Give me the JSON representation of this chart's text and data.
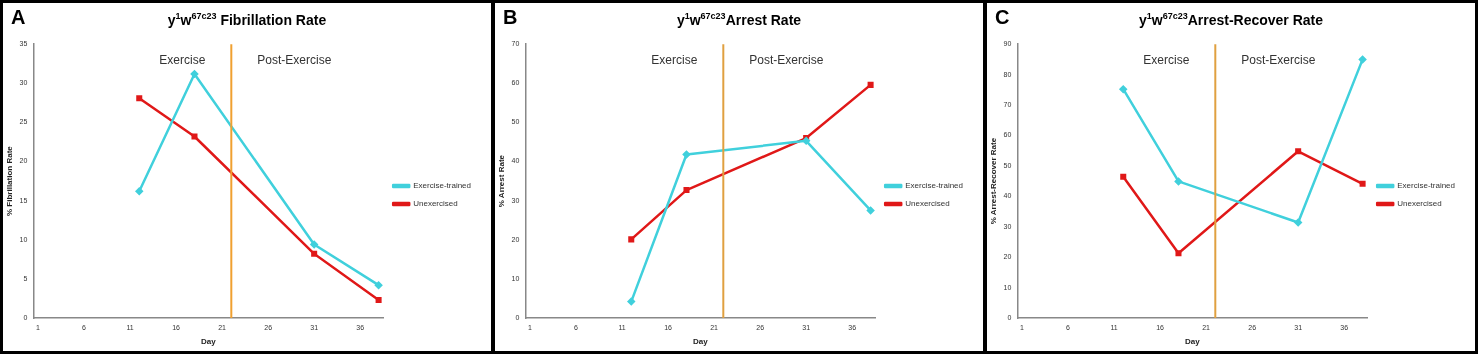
{
  "chart_data": [
    {
      "type": "line",
      "title": "y$^{1}$w$^{67c23}$ Fibrillation Rate",
      "xlabel": "Day",
      "ylabel": "% Fibrillation Rate",
      "xlim": [
        0.5,
        38.5
      ],
      "xticks": [
        1,
        6,
        11,
        16,
        21,
        26,
        31,
        36
      ],
      "ylim": [
        0,
        35
      ],
      "yticks": [
        0,
        5,
        10,
        15,
        20,
        25,
        30,
        35
      ],
      "grid": false,
      "legend": "right",
      "annotations": [
        "A",
        "Exercise",
        "Post-Exercise"
      ],
      "ref_lines": [
        {
          "axis": "x",
          "value": 22,
          "color": "#f0a030"
        }
      ],
      "x": [
        12,
        18,
        31,
        38
      ],
      "series": [
        {
          "name": "Exercise-trained",
          "color": "#40d0dc",
          "marker": "diamond",
          "values": [
            16.2,
            31.2,
            9.4,
            4.2
          ]
        },
        {
          "name": "Unexercised",
          "color": "#e01818",
          "marker": "square",
          "values": [
            28.1,
            23.2,
            8.2,
            2.3
          ]
        }
      ]
    },
    {
      "type": "line",
      "title": "y$^{1}$w$^{67c23}$Arrest Rate",
      "xlabel": "Day",
      "ylabel": "% Arrest Rate",
      "xlim": [
        0.5,
        38.5
      ],
      "xticks": [
        1,
        6,
        11,
        16,
        21,
        26,
        31,
        36
      ],
      "ylim": [
        0,
        70
      ],
      "yticks": [
        0,
        10,
        20,
        30,
        40,
        50,
        60,
        70
      ],
      "grid": false,
      "legend": "right",
      "annotations": [
        "B",
        "Exercise",
        "Post-Exercise"
      ],
      "ref_lines": [
        {
          "axis": "x",
          "value": 22,
          "color": "#e0a040"
        }
      ],
      "x": [
        12,
        18,
        31,
        38
      ],
      "series": [
        {
          "name": "Exercise-trained",
          "color": "#40d0dc",
          "marker": "diamond",
          "values": [
            4.2,
            41.8,
            45.3,
            27.5
          ]
        },
        {
          "name": "Unexercised",
          "color": "#e01818",
          "marker": "square",
          "values": [
            20.1,
            32.7,
            46,
            59.6
          ]
        }
      ]
    },
    {
      "type": "line",
      "title": "y$^{1}$w$^{67c23}$Arrest-Recover Rate",
      "xlabel": "Day",
      "ylabel": "% Arrest-Recover Rate",
      "xlim": [
        0.5,
        38.5
      ],
      "xticks": [
        1,
        6,
        11,
        16,
        21,
        26,
        31,
        36
      ],
      "ylim": [
        0,
        90
      ],
      "yticks": [
        0,
        10,
        20,
        30,
        40,
        50,
        60,
        70,
        80,
        90
      ],
      "grid": false,
      "legend": "right",
      "annotations": [
        "C",
        "Exercise",
        "Post-Exercise"
      ],
      "ref_lines": [
        {
          "axis": "x",
          "value": 22,
          "color": "#e0a040"
        }
      ],
      "x": [
        12,
        18,
        31,
        38
      ],
      "series": [
        {
          "name": "Exercise-trained",
          "color": "#40d0dc",
          "marker": "diamond",
          "values": [
            75.2,
            44.9,
            31.4,
            85
          ]
        },
        {
          "name": "Unexercised",
          "color": "#e01818",
          "marker": "square",
          "values": [
            46.4,
            21.3,
            54.8,
            44.1
          ]
        }
      ]
    }
  ]
}
